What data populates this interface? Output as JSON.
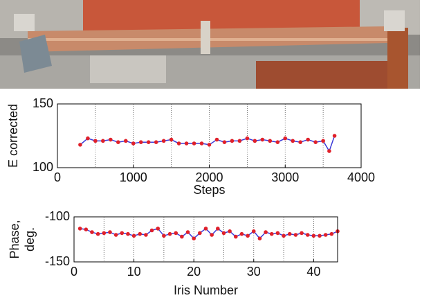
{
  "chart_data": [
    {
      "type": "line",
      "ylabel": "E corrected",
      "xlabel": "Steps",
      "x": [
        300,
        400,
        500,
        600,
        700,
        800,
        900,
        1000,
        1100,
        1200,
        1300,
        1400,
        1500,
        1600,
        1700,
        1800,
        1900,
        2000,
        2100,
        2200,
        2300,
        2400,
        2500,
        2600,
        2700,
        2800,
        2900,
        3000,
        3100,
        3200,
        3300,
        3400,
        3500,
        3580,
        3650
      ],
      "series": [
        {
          "color": "#3a3ad8",
          "marker_color": "#e0202a",
          "values": [
            118,
            123,
            121,
            121,
            122,
            120,
            121,
            119,
            120,
            120,
            120,
            121,
            122,
            119,
            119,
            119,
            119,
            118,
            122,
            120,
            121,
            121,
            123,
            121,
            122,
            121,
            120,
            123,
            121,
            120,
            122,
            120,
            121,
            113,
            125
          ]
        }
      ],
      "xlim": [
        0,
        4000
      ],
      "xticks": [
        0,
        1000,
        2000,
        3000,
        4000
      ],
      "x_grid": [
        500,
        1000,
        1500,
        2000,
        2500,
        3000,
        3500
      ],
      "ylim": [
        100,
        150
      ],
      "yticks": [
        100,
        150
      ],
      "grid": true
    },
    {
      "type": "line",
      "ylabel": [
        "Phase,",
        "deg."
      ],
      "xlabel": "Iris Number",
      "x": [
        1,
        2,
        3,
        4,
        5,
        6,
        7,
        8,
        9,
        10,
        11,
        12,
        13,
        14,
        15,
        16,
        17,
        18,
        19,
        20,
        21,
        22,
        23,
        24,
        25,
        26,
        27,
        28,
        29,
        30,
        31,
        32,
        33,
        34,
        35,
        36,
        37,
        38,
        39,
        40,
        41,
        42,
        43,
        44
      ],
      "series": [
        {
          "color": "#3a3ad8",
          "marker_color": "#e0202a",
          "values": [
            -113,
            -114,
            -117,
            -119,
            -118,
            -117,
            -120,
            -118,
            -119,
            -121,
            -119,
            -120,
            -115,
            -113,
            -121,
            -119,
            -118,
            -122,
            -117,
            -124,
            -118,
            -113,
            -120,
            -113,
            -118,
            -116,
            -122,
            -119,
            -121,
            -116,
            -124,
            -117,
            -119,
            -118,
            -121,
            -119,
            -120,
            -118,
            -120,
            -121,
            -121,
            -120,
            -119,
            -116
          ]
        }
      ],
      "xlim": [
        0,
        44
      ],
      "xticks": [
        0,
        10,
        20,
        30,
        40
      ],
      "x_grid": [
        5,
        10,
        15,
        20,
        25,
        30,
        35,
        40
      ],
      "ylim": [
        -150,
        -100
      ],
      "yticks": [
        -150,
        -100
      ],
      "grid": true
    }
  ]
}
